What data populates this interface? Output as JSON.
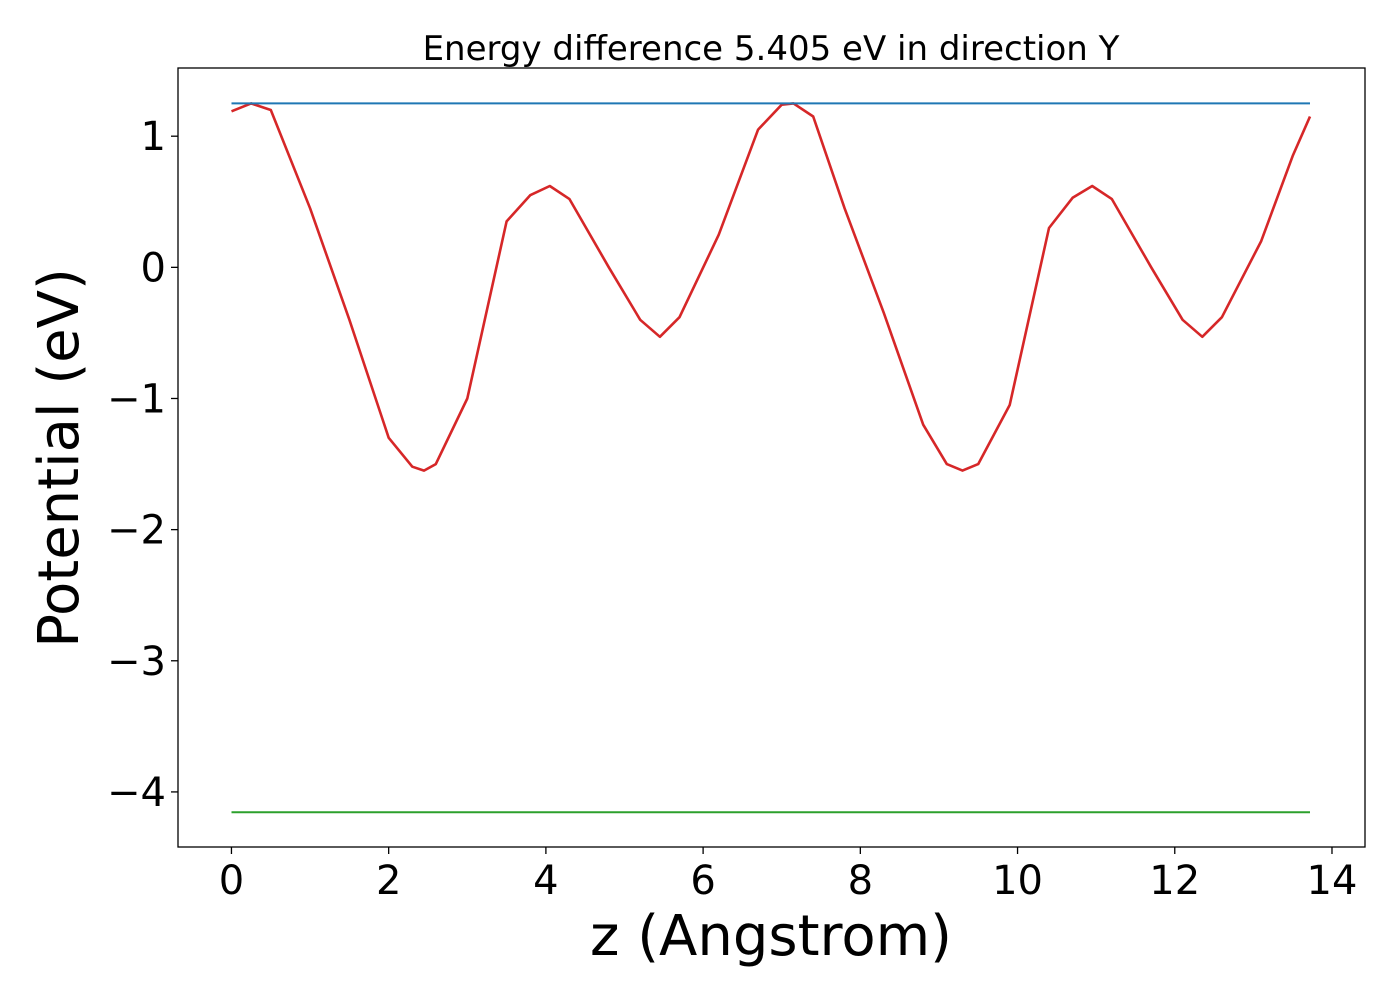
{
  "chart_data": {
    "type": "line",
    "title": "Energy difference 5.405 eV in direction Y",
    "xlabel": "z (Angstrom)",
    "ylabel": "Potential (eV)",
    "xlim": [
      -0.68,
      14.42
    ],
    "ylim": [
      -4.42,
      1.52
    ],
    "xticks": [
      0,
      2,
      4,
      6,
      8,
      10,
      12,
      14
    ],
    "xtick_labels": [
      "0",
      "2",
      "4",
      "6",
      "8",
      "10",
      "12",
      "14"
    ],
    "yticks": [
      1,
      0,
      -1,
      -2,
      -3,
      -4
    ],
    "ytick_labels": [
      "1",
      "0",
      "−1",
      "−2",
      "−3",
      "−4"
    ],
    "grid": false,
    "series": [
      {
        "color": "#d62728",
        "x": [
          0,
          0.25,
          0.5,
          1.0,
          1.5,
          2.0,
          2.3,
          2.45,
          2.6,
          3.0,
          3.5,
          3.8,
          4.05,
          4.3,
          4.8,
          5.2,
          5.45,
          5.7,
          6.2,
          6.7,
          7.0,
          7.15,
          7.4,
          7.8,
          8.3,
          8.8,
          9.1,
          9.3,
          9.5,
          9.9,
          10.4,
          10.7,
          10.95,
          11.2,
          11.7,
          12.1,
          12.35,
          12.6,
          13.1,
          13.5,
          13.72
        ],
        "y": [
          1.19,
          1.25,
          1.2,
          0.45,
          -0.4,
          -1.3,
          -1.52,
          -1.55,
          -1.5,
          -1.0,
          0.35,
          0.55,
          0.62,
          0.52,
          0.0,
          -0.4,
          -0.53,
          -0.38,
          0.25,
          1.05,
          1.24,
          1.25,
          1.15,
          0.45,
          -0.35,
          -1.2,
          -1.5,
          -1.55,
          -1.5,
          -1.05,
          0.3,
          0.53,
          0.62,
          0.52,
          0.0,
          -0.4,
          -0.53,
          -0.38,
          0.2,
          0.85,
          1.15
        ]
      },
      {
        "color": "#1f77b4",
        "x": [
          0,
          13.72
        ],
        "y": [
          1.25,
          1.25
        ]
      },
      {
        "color": "#2ca02c",
        "x": [
          0,
          13.72
        ],
        "y": [
          -4.155,
          -4.155
        ]
      }
    ]
  }
}
